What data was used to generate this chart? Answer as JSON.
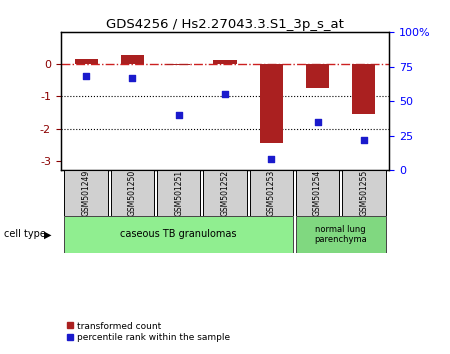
{
  "title": "GDS4256 / Hs2.27043.3.S1_3p_s_at",
  "samples": [
    "GSM501249",
    "GSM501250",
    "GSM501251",
    "GSM501252",
    "GSM501253",
    "GSM501254",
    "GSM501255"
  ],
  "red_values": [
    0.15,
    0.28,
    -0.03,
    0.12,
    -2.45,
    -0.75,
    -1.55
  ],
  "blue_values": [
    68,
    67,
    40,
    55,
    8,
    35,
    22
  ],
  "ylim_left": [
    -3.3,
    1.0
  ],
  "ylim_right": [
    0,
    100
  ],
  "yticks_left": [
    0,
    -1,
    -2,
    -3
  ],
  "yticks_right": [
    0,
    25,
    50,
    75,
    100
  ],
  "dotted_lines": [
    -1,
    -2
  ],
  "red_color": "#AA2020",
  "blue_color": "#1a1aCC",
  "dashed_line_color": "#CC2020",
  "group1_label": "caseous TB granulomas",
  "group2_label": "normal lung\nparenchyma",
  "group1_indices": [
    0,
    1,
    2,
    3,
    4
  ],
  "group2_indices": [
    5,
    6
  ],
  "cell_type_label": "cell type",
  "legend1": "transformed count",
  "legend2": "percentile rank within the sample",
  "group1_color": "#90EE90",
  "group2_color": "#80D880",
  "sample_box_color": "#D0D0D0",
  "bar_width": 0.5
}
